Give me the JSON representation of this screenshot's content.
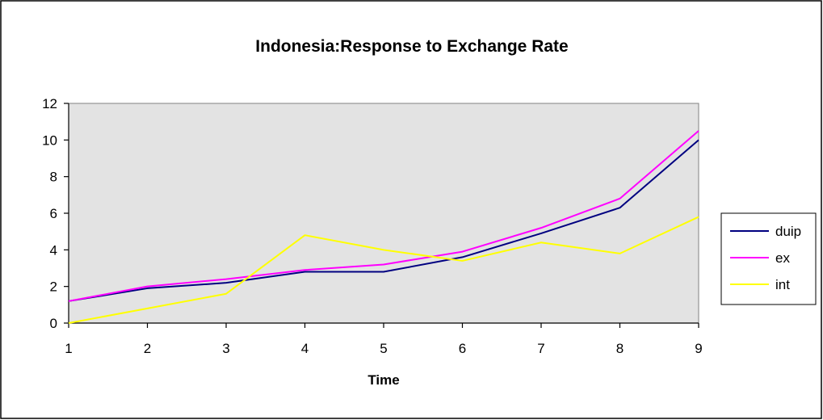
{
  "chart_data": {
    "type": "line",
    "title": "Indonesia:Response to Exchange Rate",
    "xlabel": "Time",
    "ylabel": "",
    "x": [
      1,
      2,
      3,
      4,
      5,
      6,
      7,
      8,
      9
    ],
    "xlim": [
      1,
      9
    ],
    "ylim": [
      0,
      12
    ],
    "yticks": [
      0,
      2,
      4,
      6,
      8,
      10,
      12
    ],
    "grid": false,
    "plot_background": "#e3e3e3",
    "legend_position": "right",
    "series": [
      {
        "name": "duip",
        "color": "#000080",
        "values": [
          1.2,
          1.9,
          2.2,
          2.8,
          2.8,
          3.6,
          4.9,
          6.3,
          10.0
        ]
      },
      {
        "name": "ex",
        "color": "#ff00ff",
        "values": [
          1.2,
          2.0,
          2.4,
          2.9,
          3.2,
          3.9,
          5.2,
          6.8,
          10.5
        ]
      },
      {
        "name": "int",
        "color": "#ffff00",
        "values": [
          0.0,
          0.8,
          1.6,
          4.8,
          4.0,
          3.4,
          4.4,
          3.8,
          5.8
        ]
      }
    ]
  }
}
